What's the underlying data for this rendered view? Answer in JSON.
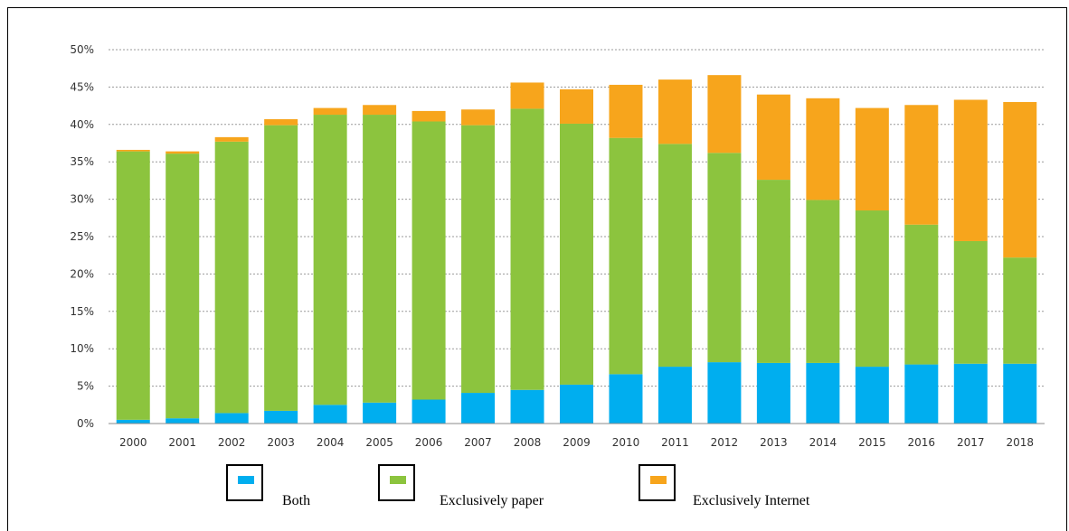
{
  "chart_data": {
    "type": "bar",
    "stacked": true,
    "title": "",
    "xlabel": "",
    "ylabel": "",
    "ylim": [
      0,
      50
    ],
    "yticks": [
      "0%",
      "5%",
      "10%",
      "15%",
      "20%",
      "25%",
      "30%",
      "35%",
      "40%",
      "45%",
      "50%"
    ],
    "grid": true,
    "legend_position": "bottom",
    "categories": [
      "2000",
      "2001",
      "2002",
      "2003",
      "2004",
      "2005",
      "2006",
      "2007",
      "2008",
      "2009",
      "2010",
      "2011",
      "2012",
      "2013",
      "2014",
      "2015",
      "2016",
      "2017",
      "2018"
    ],
    "series": [
      {
        "name": "Both",
        "color": "#00aeef",
        "values": [
          0.5,
          0.7,
          1.4,
          1.7,
          2.5,
          2.8,
          3.2,
          4.1,
          4.5,
          5.2,
          6.6,
          7.6,
          8.2,
          8.1,
          8.1,
          7.6,
          7.9,
          8.0,
          8.0
        ]
      },
      {
        "name": "Exclusively paper",
        "color": "#8cc43e",
        "values": [
          35.9,
          35.4,
          36.3,
          38.2,
          38.8,
          38.5,
          37.2,
          35.8,
          37.6,
          34.9,
          31.6,
          29.8,
          28.0,
          24.5,
          21.8,
          20.9,
          18.7,
          16.4,
          14.2
        ]
      },
      {
        "name": "Exclusively Internet",
        "color": "#f7a51c",
        "values": [
          0.2,
          0.3,
          0.6,
          0.8,
          0.9,
          1.3,
          1.4,
          2.1,
          3.5,
          4.6,
          7.1,
          8.6,
          10.4,
          11.4,
          13.6,
          13.7,
          16.0,
          18.9,
          20.8
        ]
      }
    ]
  }
}
